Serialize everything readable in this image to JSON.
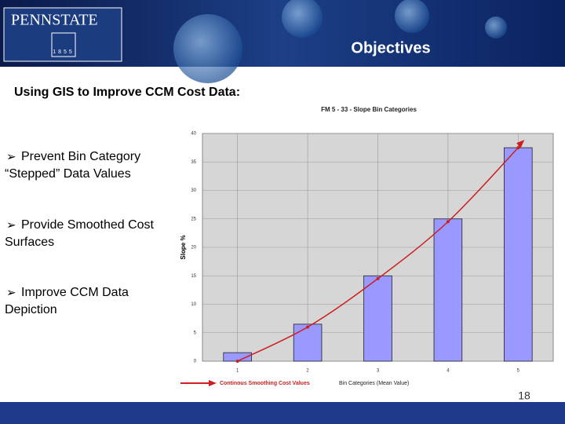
{
  "logo": {
    "name": "PENNSTATE",
    "year": "1855"
  },
  "header": {
    "title": "Objectives"
  },
  "subtitle": "Using GIS to Improve CCM Cost Data:",
  "bullets": [
    {
      "lines": [
        "Prevent Bin Category",
        "“Stepped” Data Values"
      ]
    },
    {
      "lines": [
        "Provide Smoothed Cost",
        "Surfaces"
      ]
    },
    {
      "lines": [
        "Improve CCM Data",
        "Depiction"
      ]
    }
  ],
  "page_number": "18",
  "chart_data": {
    "type": "bar",
    "title": "FM 5 - 33 - Slope Bin Categories",
    "y_label": "Slope %",
    "x_label": "Bin Categories (Mean Value)",
    "categories": [
      "1",
      "2",
      "3",
      "4",
      "5"
    ],
    "values": [
      1.5,
      6.5,
      15,
      25,
      37.5
    ],
    "color": "#9999ff",
    "series": [
      {
        "name": "Continous Smoothing Cost Values",
        "color": "#cc1f1f",
        "type": "line",
        "values": [
          0,
          6,
          14.5,
          24.5,
          37.5
        ]
      }
    ],
    "ylim": [
      0,
      40
    ],
    "yticks": [
      0,
      5,
      10,
      15,
      20,
      25,
      30,
      35,
      40
    ],
    "grid": true
  }
}
